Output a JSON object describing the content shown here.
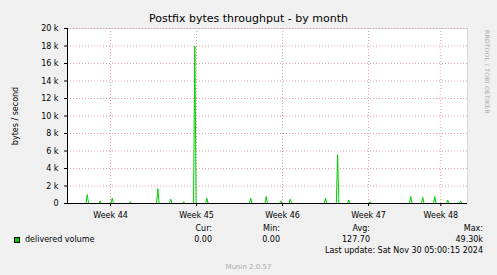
{
  "chart_data": {
    "type": "line",
    "title": "Postfix bytes throughput - by month",
    "y_label": "bytes / second",
    "x": [
      43.5,
      43.715,
      43.73,
      43.745,
      43.865,
      43.88,
      43.895,
      44.005,
      44.02,
      44.035,
      44.215,
      44.23,
      44.245,
      44.535,
      44.55,
      44.565,
      44.685,
      44.7,
      44.715,
      44.835,
      44.85,
      44.865,
      44.965,
      44.98,
      44.995,
      45.105,
      45.12,
      45.135,
      45.615,
      45.63,
      45.645,
      45.795,
      45.81,
      45.825,
      45.965,
      45.98,
      45.995,
      46.075,
      46.09,
      46.105,
      46.485,
      46.5,
      46.515,
      46.625,
      46.64,
      46.655,
      46.755,
      46.77,
      46.785,
      47.005,
      47.02,
      47.035,
      47.475,
      47.49,
      47.505,
      47.615,
      47.63,
      47.645,
      47.755,
      47.77,
      47.785,
      47.905,
      47.92,
      47.935,
      48.055,
      48.07,
      48.085,
      48.15
    ],
    "series": [
      {
        "name": "delivered volume",
        "color": "#00CC00",
        "values": [
          0,
          0,
          1000,
          0,
          0,
          300,
          0,
          0,
          600,
          0,
          0,
          200,
          0,
          0,
          1700,
          0,
          0,
          500,
          0,
          0,
          200,
          0,
          0,
          18000,
          0,
          0,
          600,
          0,
          0,
          600,
          0,
          0,
          800,
          0,
          0,
          300,
          0,
          0,
          500,
          0,
          0,
          600,
          0,
          0,
          5600,
          0,
          0,
          400,
          0,
          0,
          200,
          0,
          0,
          800,
          0,
          0,
          700,
          0,
          0,
          800,
          0,
          0,
          400,
          0,
          0,
          300,
          0,
          0
        ]
      }
    ],
    "xlim": [
      43.5,
      48.15
    ],
    "xticks": [
      {
        "value": 44,
        "label": "Week 44"
      },
      {
        "value": 45,
        "label": "Week 45"
      },
      {
        "value": 46,
        "label": "Week 46"
      },
      {
        "value": 47,
        "label": "Week 47"
      },
      {
        "value": 47.84,
        "label": "Week 48"
      }
    ],
    "ylim": [
      0,
      20000
    ],
    "yticks": [
      0,
      {
        "value": 2000,
        "label": "2 k"
      },
      {
        "value": 4000,
        "label": "4 k"
      },
      {
        "value": 6000,
        "label": "6 k"
      },
      {
        "value": 8000,
        "label": "8 k"
      },
      {
        "value": 10000,
        "label": "10 k"
      },
      {
        "value": 12000,
        "label": "12 k"
      },
      {
        "value": 14000,
        "label": "14 k"
      },
      {
        "value": 16000,
        "label": "16 k"
      },
      {
        "value": 18000,
        "label": "18 k"
      },
      {
        "value": 20000,
        "label": "20 k"
      }
    ],
    "grid": true,
    "legend": "bottom",
    "annotations": {
      "stats": [
        {
          "name": "Cur:",
          "value": 0,
          "label": "0.00"
        },
        {
          "name": "Min:",
          "value": 0,
          "label": "0.00"
        },
        {
          "name": "Avg:",
          "value": 127.7,
          "label": "127.70"
        },
        {
          "name": "Max:",
          "value": 49300,
          "label": "49.30k"
        }
      ],
      "last_update": "Last update: Sat Nov 30 05:00:15 2024",
      "footer": "Munin 2.0.57",
      "side_text": "RRDTOOL / TOBI OETIKER"
    }
  }
}
